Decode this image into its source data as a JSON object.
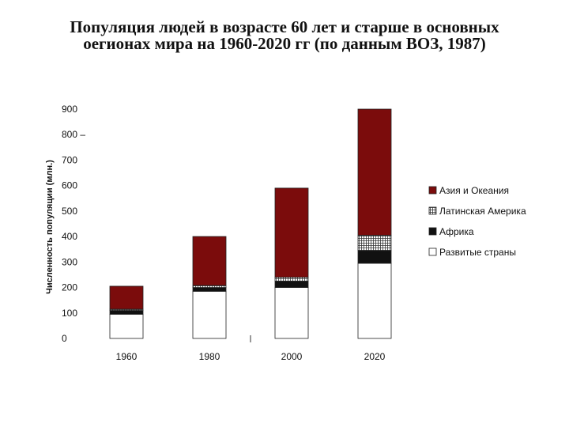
{
  "title_lines": [
    "Популяция людей в возрасте 60 лет и старше в основных",
    "оегионах мира на 1960-2020 гг (по данным ВОЗ, 1987)"
  ],
  "colors": {
    "asia": "#7b0c0c",
    "latin": "#e8e8e8",
    "africa": "#111111",
    "developed": "#ffffff"
  },
  "chart_data": {
    "type": "bar",
    "stacked": true,
    "title": "Популяция людей в возрасте 60 лет и старше в основных оегионах мира на 1960-2020 гг (по данным ВОЗ, 1987)",
    "ylabel": "Численность популяции (млн.)",
    "xlabel": "",
    "ylim": [
      0,
      900
    ],
    "yticks": [
      "0",
      "100",
      "200",
      "300",
      "400",
      "500",
      "600",
      "700",
      "800 –",
      "900"
    ],
    "categories": [
      "1960",
      "1980",
      "2000",
      "2020"
    ],
    "series": [
      {
        "name": "Развитые страны",
        "values": [
          95,
          185,
          200,
          295
        ]
      },
      {
        "name": "Африка",
        "values": [
          15,
          15,
          25,
          50
        ]
      },
      {
        "name": "Латинская Америка",
        "values": [
          5,
          8,
          15,
          60
        ]
      },
      {
        "name": "Азия и Океания",
        "values": [
          90,
          192,
          350,
          495
        ]
      }
    ],
    "legend_position": "right",
    "legend_order": [
      "Азия и Океания",
      "Латинская Америка",
      "Африка",
      "Развитые страны"
    ],
    "grid": false
  }
}
